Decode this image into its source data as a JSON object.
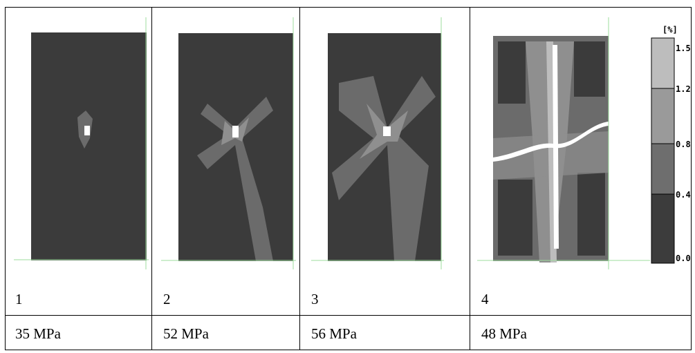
{
  "panels": [
    {
      "label": "1",
      "stress": "35 MPa"
    },
    {
      "label": "2",
      "stress": "52 MPa"
    },
    {
      "label": "3",
      "stress": "56 MPa"
    },
    {
      "label": "4",
      "stress": "48 MPa"
    }
  ],
  "legend": {
    "unit": "[%]",
    "levels": [
      "1.5",
      "1.2",
      "0.8",
      "0.4",
      "0.0"
    ]
  }
}
